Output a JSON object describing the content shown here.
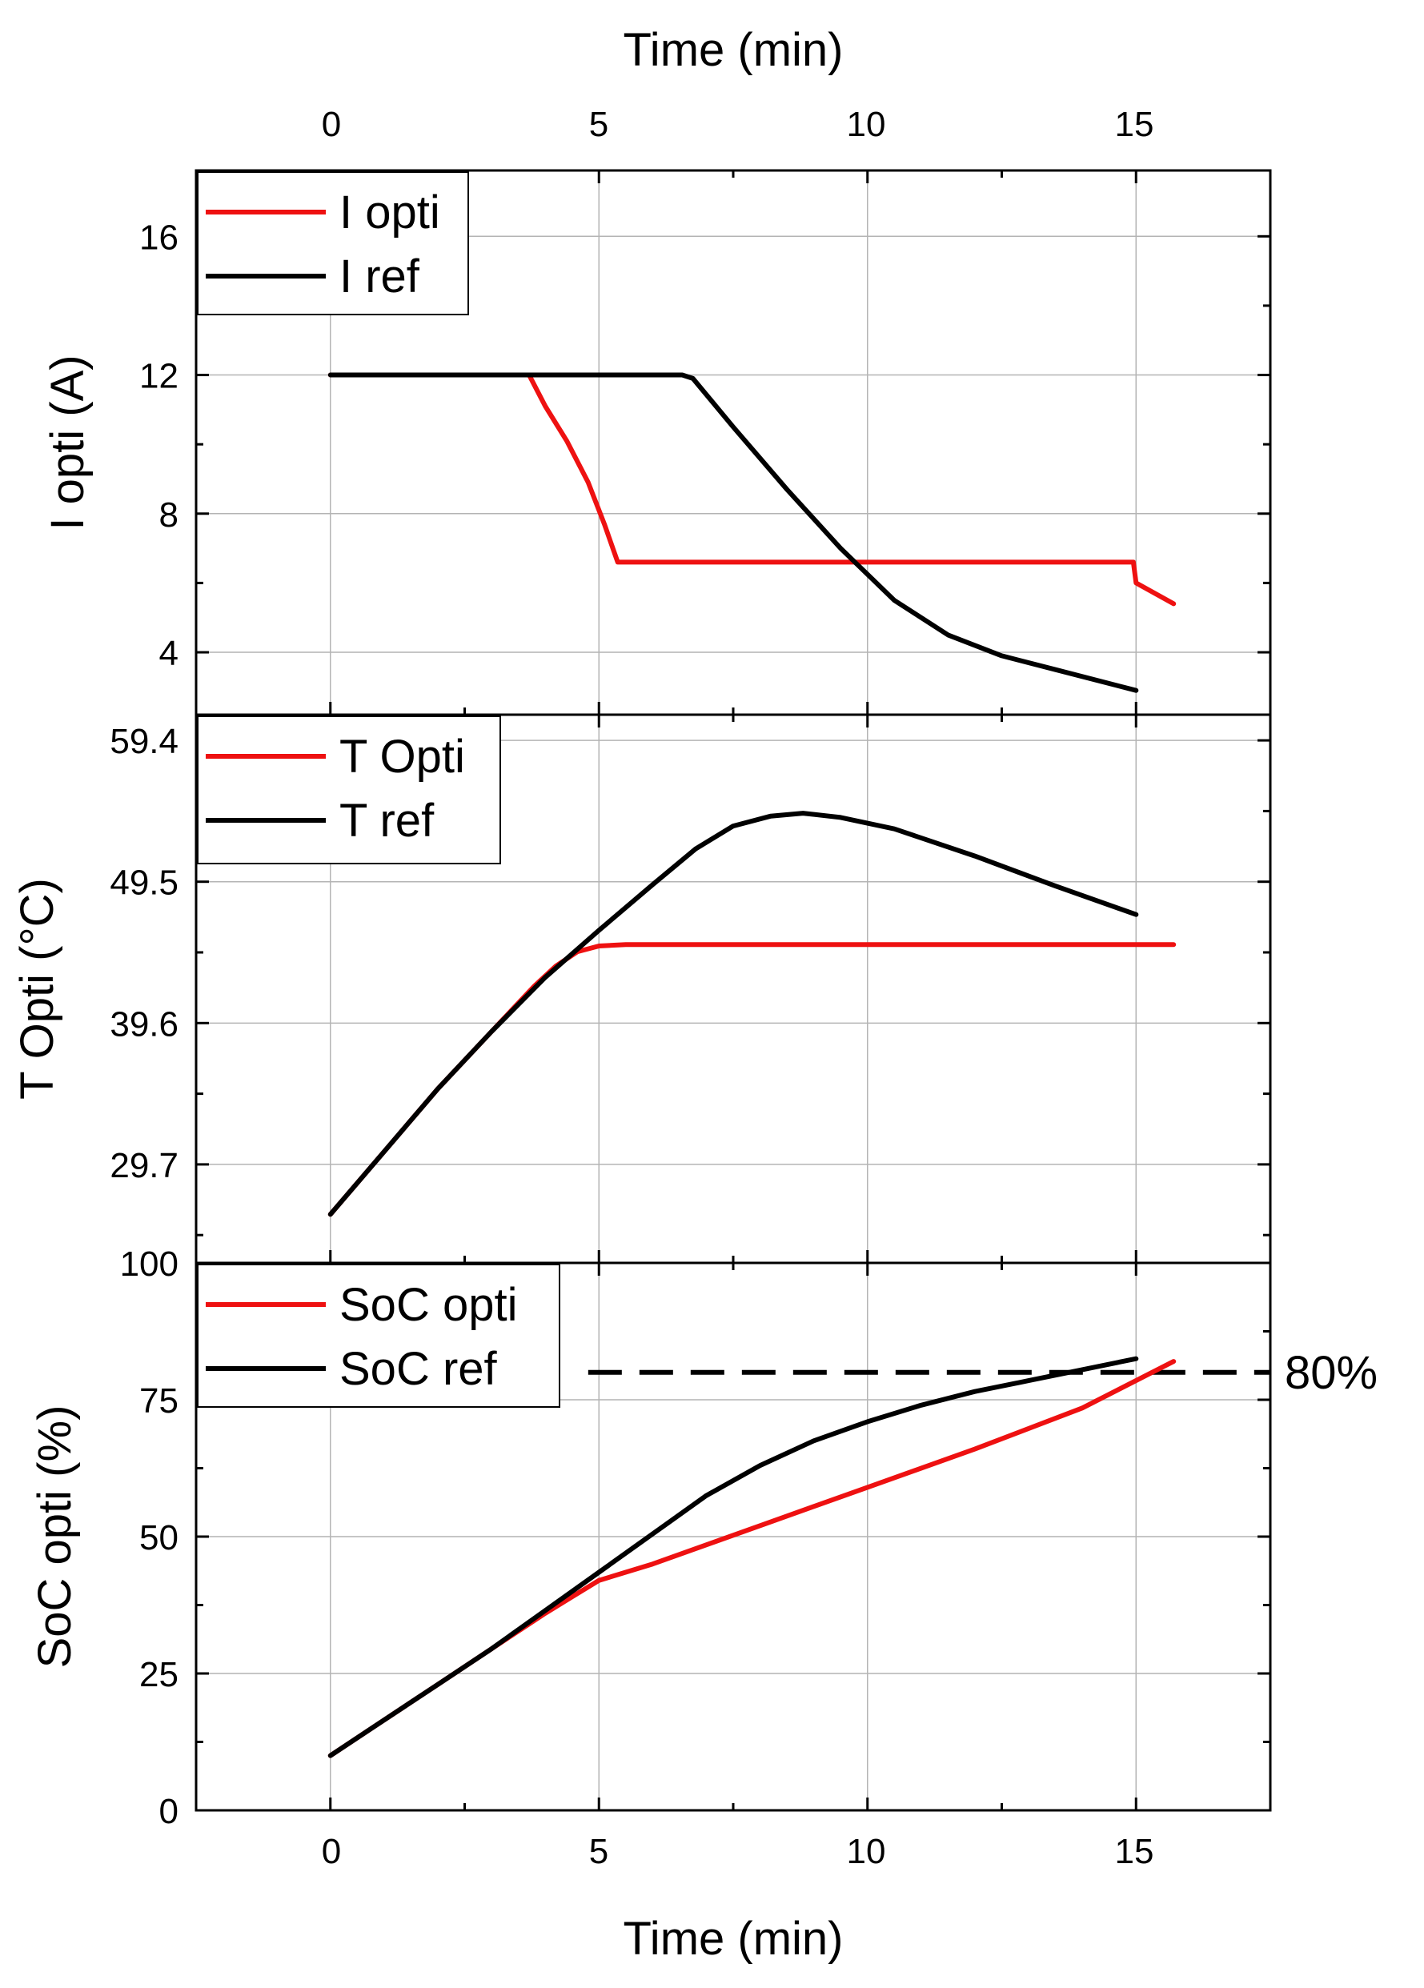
{
  "figure": {
    "top_axis_title": "Time (min)",
    "bottom_axis_title": "Time (min)",
    "x_ticks": [
      "0",
      "5",
      "10",
      "15"
    ]
  },
  "chart_data": [
    {
      "type": "line",
      "title": "",
      "xlabel": "Time (min)",
      "ylabel": "I opti (A)",
      "xlim": [
        -2.5,
        17.5
      ],
      "ylim": [
        2.2,
        17.9
      ],
      "x_ticks": [
        0,
        5,
        10,
        15
      ],
      "y_ticks": [
        4,
        8,
        12,
        16
      ],
      "y_tick_labels": [
        "4",
        "8",
        "12",
        "16"
      ],
      "grid": true,
      "legend": "top-left",
      "series": [
        {
          "name": "I opti",
          "color": "#ee1111",
          "x": [
            0,
            3.7,
            4.0,
            4.4,
            4.8,
            5.1,
            5.35,
            6,
            8,
            10,
            12,
            14,
            14.95,
            15.0,
            15.7
          ],
          "y": [
            12,
            12,
            11.1,
            10.1,
            8.9,
            7.7,
            6.6,
            6.6,
            6.6,
            6.6,
            6.6,
            6.6,
            6.6,
            6.0,
            5.4
          ]
        },
        {
          "name": "I ref",
          "color": "#000000",
          "x": [
            0,
            2,
            4,
            6,
            6.55,
            6.75,
            7.5,
            8.5,
            9.5,
            10.5,
            11.5,
            12.5,
            13.5,
            15.0
          ],
          "y": [
            12,
            12,
            12,
            12,
            12,
            11.9,
            10.5,
            8.7,
            7.0,
            5.5,
            4.5,
            3.9,
            3.5,
            2.9
          ]
        }
      ]
    },
    {
      "type": "line",
      "title": "",
      "xlabel": "",
      "ylabel": "T Opti (°C)",
      "xlim": [
        -2.5,
        17.5
      ],
      "ylim": [
        22.8,
        61.2
      ],
      "x_ticks": [
        0,
        5,
        10,
        15
      ],
      "y_ticks": [
        29.7,
        39.6,
        49.5,
        59.4
      ],
      "y_tick_labels": [
        "29.7",
        "39.6",
        "49.5",
        "59.4"
      ],
      "grid": true,
      "legend": "top-left",
      "series": [
        {
          "name": "T Opti",
          "color": "#ee1111",
          "x": [
            0,
            1,
            2,
            3,
            3.8,
            4.2,
            4.6,
            5.0,
            5.5,
            8,
            10,
            12,
            14,
            15.7
          ],
          "y": [
            26.2,
            30.6,
            35.0,
            39.0,
            42.2,
            43.6,
            44.6,
            45.0,
            45.1,
            45.1,
            45.1,
            45.1,
            45.1,
            45.1
          ]
        },
        {
          "name": "T ref",
          "color": "#000000",
          "x": [
            0,
            1,
            2,
            3,
            4,
            5,
            6,
            6.8,
            7.5,
            8.2,
            8.8,
            9.5,
            10.5,
            12,
            13.5,
            15.0
          ],
          "y": [
            26.2,
            30.6,
            35.0,
            39.0,
            42.8,
            46.1,
            49.3,
            51.8,
            53.4,
            54.1,
            54.3,
            54.0,
            53.2,
            51.3,
            49.2,
            47.2
          ]
        }
      ]
    },
    {
      "type": "line",
      "title": "",
      "xlabel": "Time (min)",
      "ylabel": "SoC opti (%)",
      "xlim": [
        -2.5,
        17.5
      ],
      "ylim": [
        0,
        100
      ],
      "x_ticks": [
        0,
        5,
        10,
        15
      ],
      "y_ticks": [
        0,
        25,
        50,
        75,
        100
      ],
      "y_tick_labels": [
        "0",
        "25",
        "50",
        "75",
        "100"
      ],
      "grid": true,
      "legend": "top-left",
      "reference_line": {
        "y": 80,
        "label": "80%",
        "style": "dashed",
        "x_range": [
          4.8,
          17.5
        ]
      },
      "series": [
        {
          "name": "SoC opti",
          "color": "#ee1111",
          "x": [
            0,
            1,
            2,
            3,
            4,
            4.5,
            5,
            6,
            8,
            10,
            12,
            14,
            15.7
          ],
          "y": [
            10,
            16.5,
            23.0,
            29.5,
            36.0,
            39.0,
            42.0,
            45.0,
            52.0,
            59.0,
            66.0,
            73.5,
            82.0
          ]
        },
        {
          "name": "SoC ref",
          "color": "#000000",
          "x": [
            0,
            1,
            2,
            3,
            4,
            5,
            6,
            7,
            8,
            9,
            10,
            11,
            12,
            13,
            14,
            15.0
          ],
          "y": [
            10,
            16.5,
            23.0,
            29.5,
            36.5,
            43.5,
            50.5,
            57.5,
            63.0,
            67.5,
            71.0,
            74.0,
            76.5,
            78.5,
            80.5,
            82.5
          ]
        }
      ]
    }
  ]
}
